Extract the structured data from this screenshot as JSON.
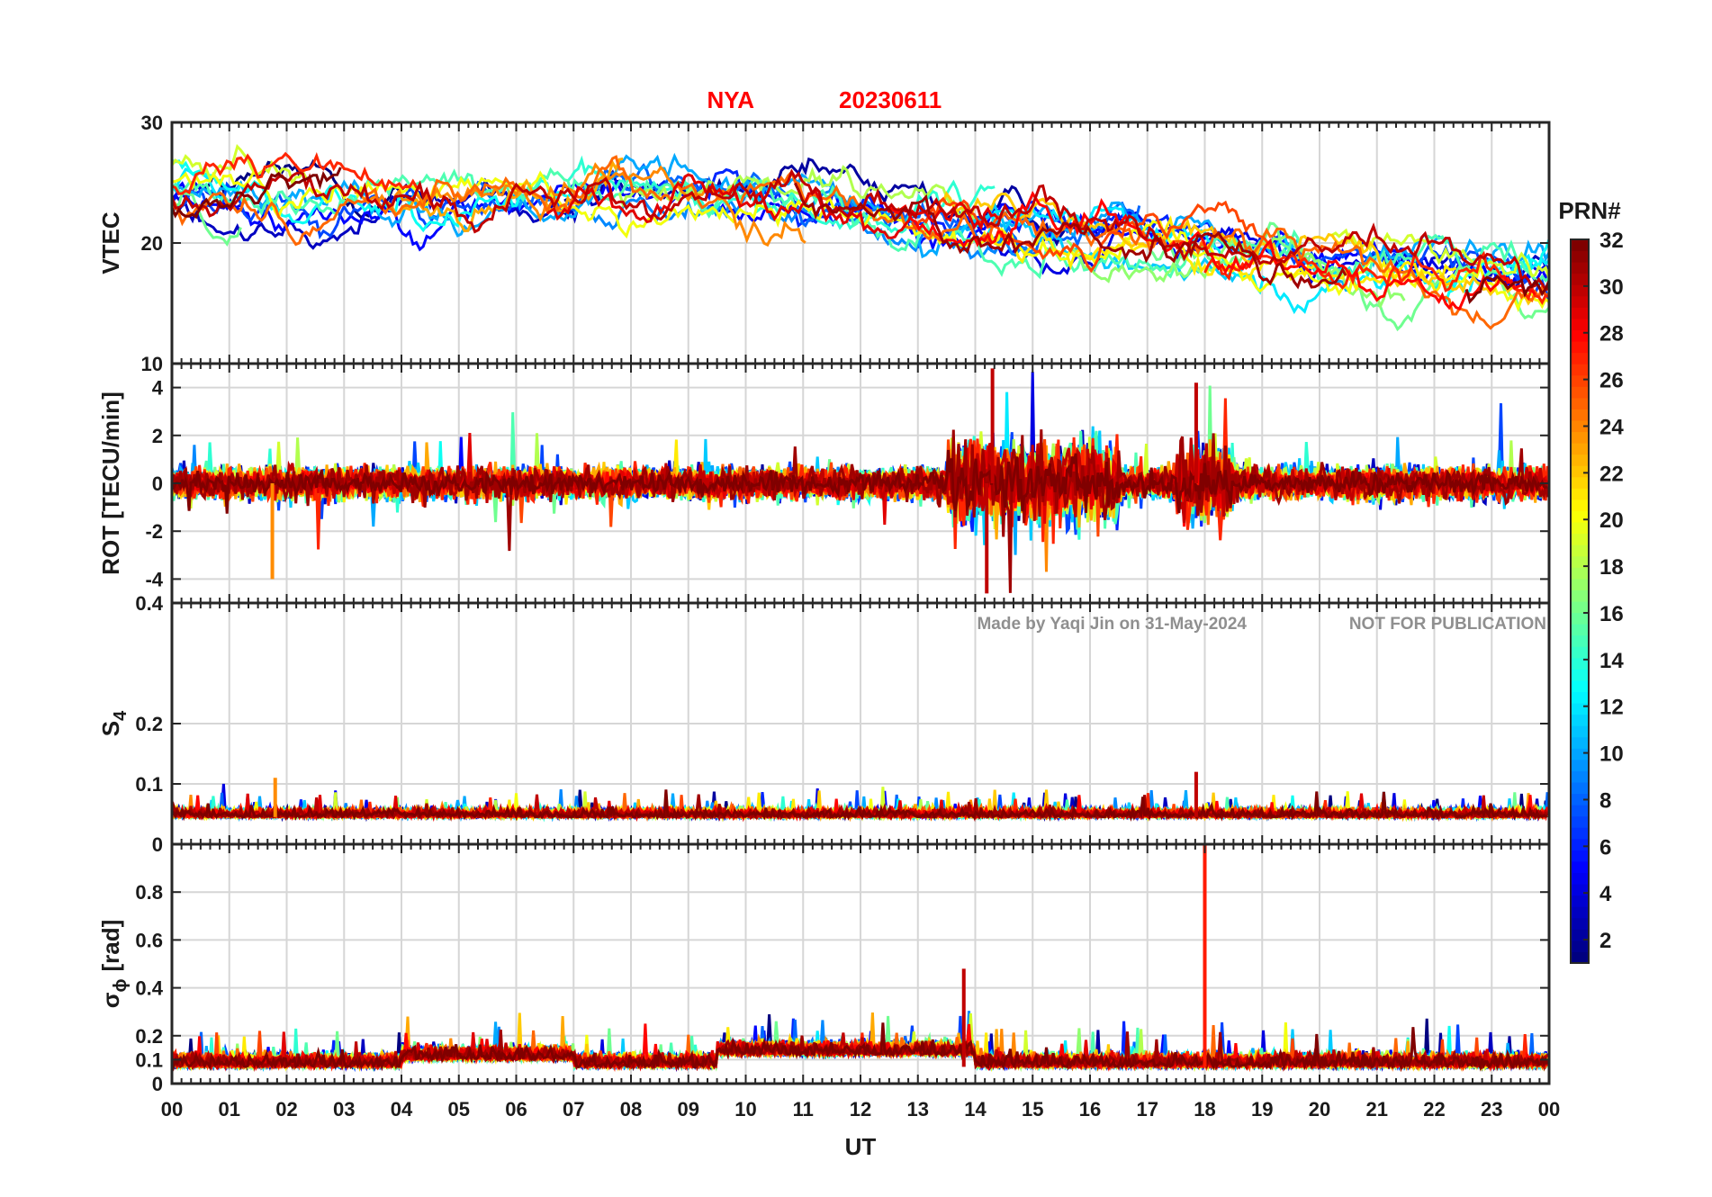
{
  "figure": {
    "title_station": "NYA",
    "title_date": "20230611",
    "title_color": "#ff0000",
    "xlabel": "UT",
    "watermark_author": "Made by Yaqi Jin on 31-May-2024",
    "watermark_notice": "NOT FOR PUBLICATION",
    "colorbar_label": "PRN#"
  },
  "chart_data": {
    "type": "line",
    "x_ticks": [
      "00",
      "01",
      "02",
      "03",
      "04",
      "05",
      "06",
      "07",
      "08",
      "09",
      "10",
      "11",
      "12",
      "13",
      "14",
      "15",
      "16",
      "17",
      "18",
      "19",
      "20",
      "21",
      "22",
      "23",
      "00"
    ],
    "x_range_hours": [
      0,
      24
    ],
    "grid": true,
    "colormap": "jet",
    "colorbar": {
      "range": [
        1,
        32
      ],
      "ticks": [
        "2",
        "4",
        "6",
        "8",
        "10",
        "12",
        "14",
        "16",
        "18",
        "20",
        "22",
        "24",
        "26",
        "28",
        "30",
        "32"
      ],
      "location": "right"
    },
    "panels": [
      {
        "key": "vtec",
        "ylabel": "VTEC",
        "ylim": [
          10,
          30
        ],
        "yticks": [
          "10",
          "20",
          "30"
        ],
        "typical_level": "about 25 TECU at 02-08 UT, decreasing to about 16 TECU at 20-24 UT"
      },
      {
        "key": "rot",
        "ylabel": "ROT [TECU/min]",
        "ylim": [
          -5,
          5
        ],
        "yticks": [
          "-4",
          "-2",
          "0",
          "2",
          "4"
        ],
        "extremes": [
          {
            "ut": 1.75,
            "value": -4.0
          },
          {
            "ut": 14.3,
            "value": 4.8
          },
          {
            "ut": 14.2,
            "value": -4.6
          },
          {
            "ut": 17.85,
            "value": 4.2
          }
        ]
      },
      {
        "key": "s4",
        "ylabel_main": "S",
        "ylabel_sub": "4",
        "ylim": [
          0,
          0.4
        ],
        "yticks": [
          "0",
          "0.1",
          "0.2",
          "0.4"
        ],
        "baseline": 0.045,
        "peaks": [
          {
            "ut": 1.8,
            "value": 0.11
          },
          {
            "ut": 17.85,
            "value": 0.12
          }
        ]
      },
      {
        "key": "sigphi",
        "ylabel_main": "σ",
        "ylabel_sub": "ϕ",
        "ylabel_unit": "[rad]",
        "ylim": [
          0,
          1
        ],
        "yticks": [
          "0",
          "0.1",
          "0.2",
          "0.4",
          "0.6",
          "0.8"
        ],
        "baseline": 0.07,
        "peaks": [
          {
            "ut": 13.8,
            "value": 0.48
          },
          {
            "ut": 18.0,
            "value": 1.0
          }
        ]
      }
    ],
    "series_note": "one colored line per satellite PRN 1-32"
  }
}
